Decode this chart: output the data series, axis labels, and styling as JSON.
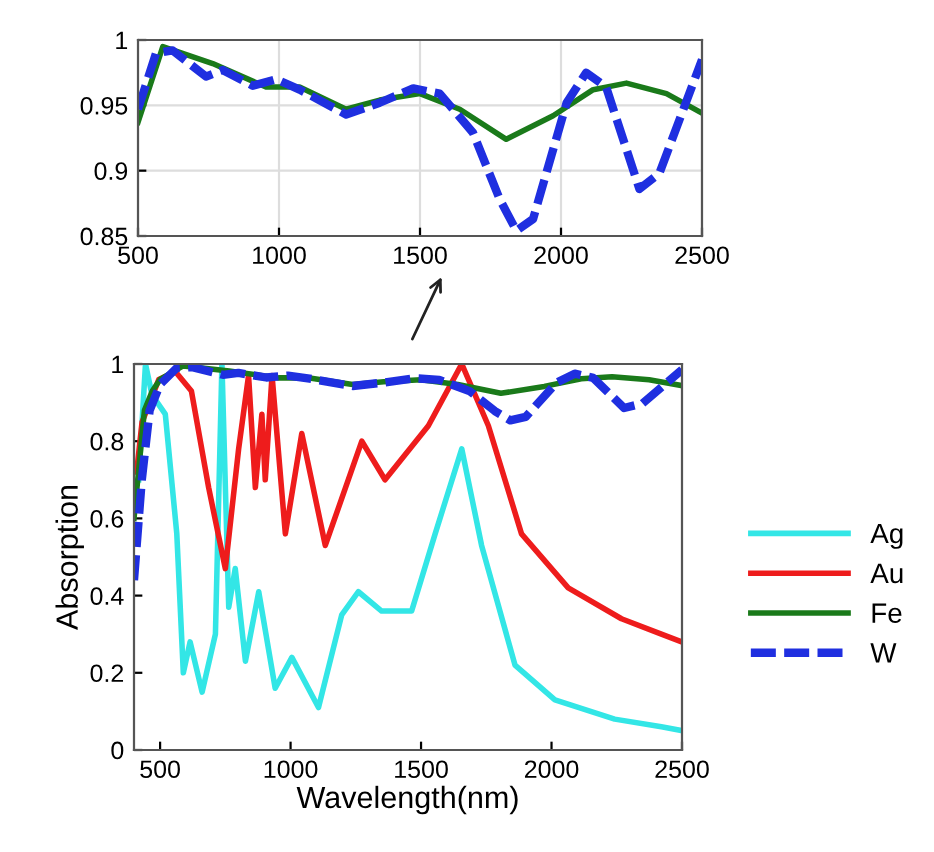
{
  "chart_data": [
    {
      "type": "line",
      "xlim": [
        500,
        2500
      ],
      "ylim": [
        0.85,
        1
      ],
      "xticks": [
        500,
        1000,
        1500,
        2000,
        2500
      ],
      "yticks": [
        0.85,
        0.9,
        0.95,
        1
      ],
      "grid": true,
      "legend": false,
      "series": [
        {
          "color": "#1a7a1a",
          "line_style": "solid",
          "x": [
            500,
            588,
            765,
            954,
            1073,
            1238,
            1357,
            1500,
            1641,
            1806,
            1972,
            2114,
            2232,
            2374,
            2500
          ],
          "values": [
            0.937,
            0.995,
            0.982,
            0.964,
            0.964,
            0.947,
            0.954,
            0.959,
            0.947,
            0.924,
            0.942,
            0.962,
            0.967,
            0.959,
            0.944
          ]
        },
        {
          "color": "#1f2fe0",
          "line_style": "dashed",
          "x": [
            500,
            564,
            623,
            741,
            800,
            907,
            990,
            1073,
            1238,
            1357,
            1476,
            1570,
            1688,
            1783,
            1842,
            1901,
            2020,
            2089,
            2160,
            2278,
            2349,
            2500
          ],
          "values": [
            0.947,
            0.99,
            0.992,
            0.972,
            0.977,
            0.965,
            0.97,
            0.962,
            0.943,
            0.952,
            0.963,
            0.959,
            0.929,
            0.878,
            0.854,
            0.863,
            0.952,
            0.975,
            0.964,
            0.886,
            0.898,
            0.985
          ]
        }
      ]
    },
    {
      "type": "line",
      "xlim": [
        400,
        2500
      ],
      "ylim": [
        0,
        1
      ],
      "xticks": [
        500,
        1000,
        1500,
        2000,
        2500
      ],
      "yticks": [
        0,
        0.2,
        0.4,
        0.6,
        0.8,
        1
      ],
      "grid": false,
      "legend": "right",
      "xlabel": "Wavelength(nm)",
      "ylabel": "Absorption",
      "series": [
        {
          "name": "Ag",
          "color": "#33e6e6",
          "line_style": "solid",
          "x": [
            418,
            444,
            469,
            520,
            564,
            589,
            615,
            661,
            712,
            737,
            763,
            788,
            827,
            878,
            941,
            1005,
            1107,
            1196,
            1260,
            1349,
            1464,
            1554,
            1656,
            1732,
            1860,
            2013,
            2242,
            2421,
            2500
          ],
          "values": [
            0.7,
            1.0,
            0.92,
            0.87,
            0.56,
            0.2,
            0.28,
            0.15,
            0.3,
            1.0,
            0.37,
            0.47,
            0.23,
            0.41,
            0.16,
            0.24,
            0.11,
            0.35,
            0.41,
            0.36,
            0.36,
            0.56,
            0.78,
            0.53,
            0.22,
            0.13,
            0.08,
            0.06,
            0.05
          ]
        },
        {
          "name": "Au",
          "color": "#ee1c1c",
          "line_style": "solid",
          "x": [
            410,
            431,
            495,
            559,
            620,
            686,
            750,
            801,
            839,
            865,
            890,
            903,
            929,
            980,
            1043,
            1133,
            1273,
            1362,
            1528,
            1656,
            1758,
            1885,
            2064,
            2268,
            2421,
            2500
          ],
          "values": [
            0.72,
            0.85,
            0.96,
            0.98,
            0.93,
            0.68,
            0.47,
            0.78,
            0.97,
            0.68,
            0.87,
            0.7,
            0.97,
            0.56,
            0.82,
            0.53,
            0.8,
            0.7,
            0.84,
            1.0,
            0.84,
            0.56,
            0.42,
            0.34,
            0.3,
            0.28
          ]
        },
        {
          "name": "Fe",
          "color": "#1a7a1a",
          "line_style": "solid",
          "x": [
            400,
            440,
            470,
            500,
            588,
            765,
            954,
            1073,
            1238,
            1357,
            1500,
            1641,
            1806,
            1972,
            2114,
            2232,
            2374,
            2500
          ],
          "values": [
            0.6,
            0.88,
            0.93,
            0.96,
            0.995,
            0.982,
            0.964,
            0.964,
            0.947,
            0.954,
            0.959,
            0.947,
            0.924,
            0.942,
            0.962,
            0.967,
            0.959,
            0.944
          ]
        },
        {
          "name": "W",
          "color": "#1f2fe0",
          "line_style": "dashed",
          "x": [
            400,
            430,
            460,
            500,
            564,
            623,
            741,
            800,
            907,
            990,
            1073,
            1238,
            1357,
            1476,
            1570,
            1688,
            1783,
            1842,
            1901,
            2020,
            2089,
            2160,
            2278,
            2349,
            2500
          ],
          "values": [
            0.44,
            0.7,
            0.88,
            0.947,
            0.99,
            0.992,
            0.972,
            0.977,
            0.965,
            0.97,
            0.962,
            0.943,
            0.952,
            0.963,
            0.959,
            0.929,
            0.878,
            0.854,
            0.863,
            0.952,
            0.975,
            0.964,
            0.886,
            0.898,
            0.985
          ]
        }
      ]
    }
  ]
}
